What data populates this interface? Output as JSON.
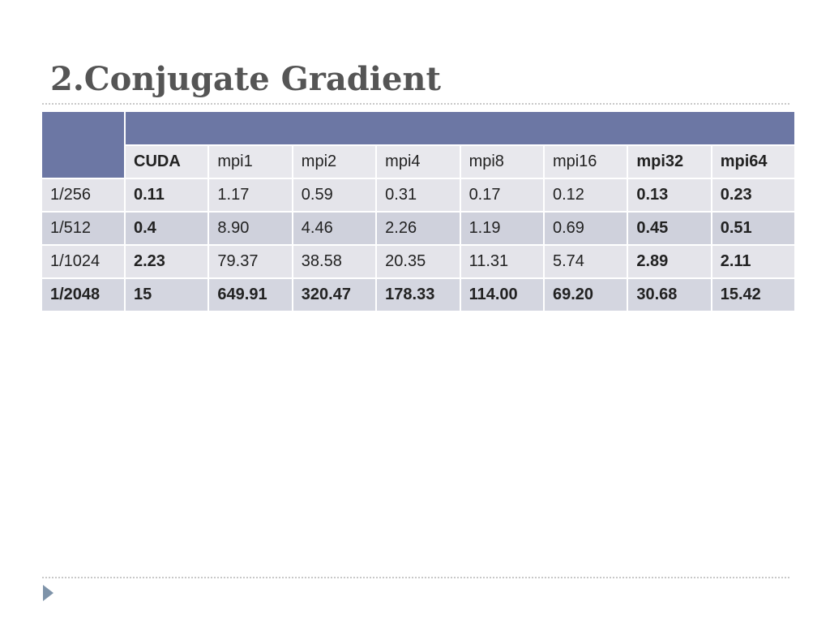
{
  "slide": {
    "title": "2.Conjugate Gradient"
  },
  "table": {
    "columns": [
      "CUDA",
      "mpi1",
      "mpi2",
      "mpi4",
      "mpi8",
      "mpi16",
      "mpi32",
      "mpi64"
    ],
    "rows": [
      {
        "label": "1/256",
        "values": [
          "0.11",
          "1.17",
          "0.59",
          "0.31",
          "0.17",
          "0.12",
          "0.13",
          "0.23"
        ]
      },
      {
        "label": "1/512",
        "values": [
          "0.4",
          "8.90",
          "4.46",
          "2.26",
          "1.19",
          "0.69",
          "0.45",
          "0.51"
        ]
      },
      {
        "label": "1/1024",
        "values": [
          "2.23",
          "79.37",
          "38.58",
          "20.35",
          "11.31",
          "5.74",
          "2.89",
          "2.11"
        ]
      },
      {
        "label": "1/2048",
        "values": [
          "15",
          "649.91",
          "320.47",
          "178.33",
          "114.00",
          "69.20",
          "30.68",
          "15.42"
        ]
      }
    ]
  },
  "colors": {
    "header_band": "#6c77a4",
    "row_light": "#e4e4ea",
    "row_dark": "#cfd1dc",
    "title": "#555555",
    "bullet": "#7e93a9"
  },
  "icons": {
    "bullet": "triangle-right-icon"
  }
}
